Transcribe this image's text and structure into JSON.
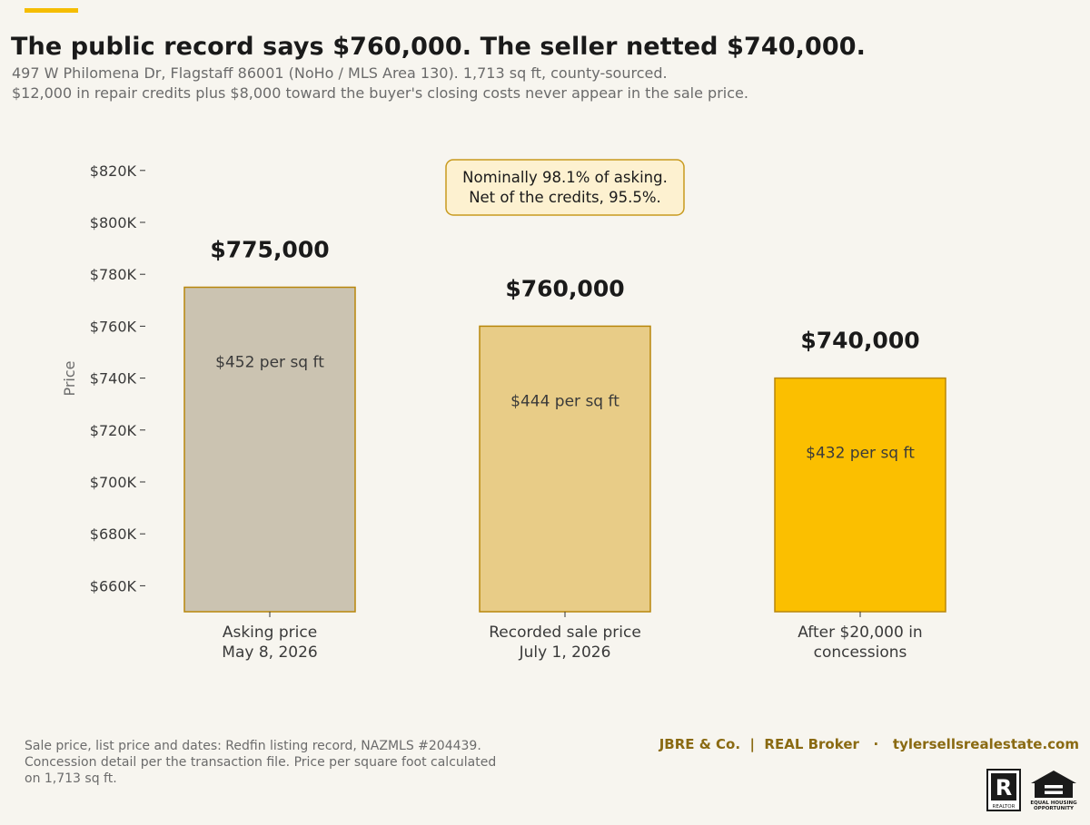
{
  "header": {
    "title": "The public record says $760,000. The seller netted $740,000.",
    "subtitle_line1": "497 W Philomena Dr, Flagstaff 86001 (NoHo / MLS Area 130). 1,713 sq ft, county-sourced.",
    "subtitle_line2": "$12,000 in repair credits plus $8,000 toward the buyer's closing costs never appear in the sale price."
  },
  "colors": {
    "accent": "#f5bd00",
    "background": "#f7f5ef",
    "bar_outline": "#b8860b",
    "annotation_fill": "#fdf1d0",
    "annotation_border": "#c89a1e"
  },
  "chart_data": {
    "type": "bar",
    "ylabel": "Price",
    "ylim": [
      650000,
      830000
    ],
    "yticks": [
      660000,
      680000,
      700000,
      720000,
      740000,
      760000,
      780000,
      800000,
      820000
    ],
    "ytick_labels": [
      "$660K",
      "$680K",
      "$700K",
      "$720K",
      "$740K",
      "$760K",
      "$780K",
      "$800K",
      "$820K"
    ],
    "grid": false,
    "categories": [
      [
        "Asking price",
        "May 8, 2026"
      ],
      [
        "Recorded sale price",
        "July 1, 2026"
      ],
      [
        "After $20,000 in",
        "concessions"
      ]
    ],
    "values": [
      775000,
      760000,
      740000
    ],
    "value_labels": [
      "$775,000",
      "$760,000",
      "$740,000"
    ],
    "inner_labels": [
      "$452 per sq ft",
      "$444 per sq ft",
      "$432 per sq ft"
    ],
    "bar_colors": [
      "#cbc3b1",
      "#e8cc87",
      "#fbbf00"
    ],
    "annotation": [
      "Nominally 98.1% of asking.",
      "Net of the credits, 95.5%."
    ]
  },
  "footer": {
    "source_line1": "Sale price, list price and dates: Redfin listing record, NAZMLS #204439.",
    "source_line2": "Concession detail per the transaction file. Price per square foot calculated",
    "source_line3": "on 1,713 sq ft.",
    "brand": "JBRE & Co.  |  REAL Broker   ·   tylersellsrealestate.com",
    "realtor_logo_text": "REALTOR",
    "eho_logo_text_1": "EQUAL HOUSING",
    "eho_logo_text_2": "OPPORTUNITY"
  }
}
